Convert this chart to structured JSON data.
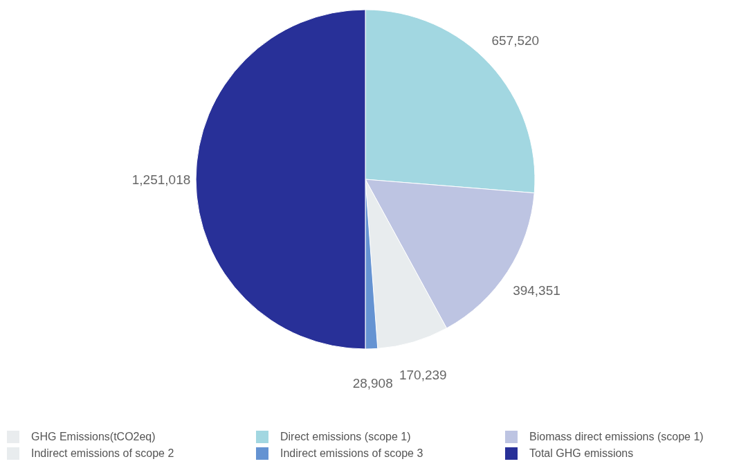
{
  "chart_data": {
    "type": "pie",
    "categories": [
      "GHG Emissions(tCO2eq)",
      "Direct emissions (scope 1)",
      "Biomass direct emissions (scope 1)",
      "Indirect emissions of scope 2",
      "Indirect emissions of scope 3",
      "Total GHG emissions"
    ],
    "values": [
      null,
      657520,
      394351,
      170239,
      28908,
      1251018
    ],
    "colors": [
      "#e9ecee",
      "#a2d7e1",
      "#bdc4e2",
      "#e8ecee",
      "#6593d2",
      "#283098"
    ],
    "value_labels": [
      null,
      "657,520",
      "394,351",
      "170,239",
      "28,908",
      "1,251,018"
    ],
    "legend": "bottom"
  }
}
